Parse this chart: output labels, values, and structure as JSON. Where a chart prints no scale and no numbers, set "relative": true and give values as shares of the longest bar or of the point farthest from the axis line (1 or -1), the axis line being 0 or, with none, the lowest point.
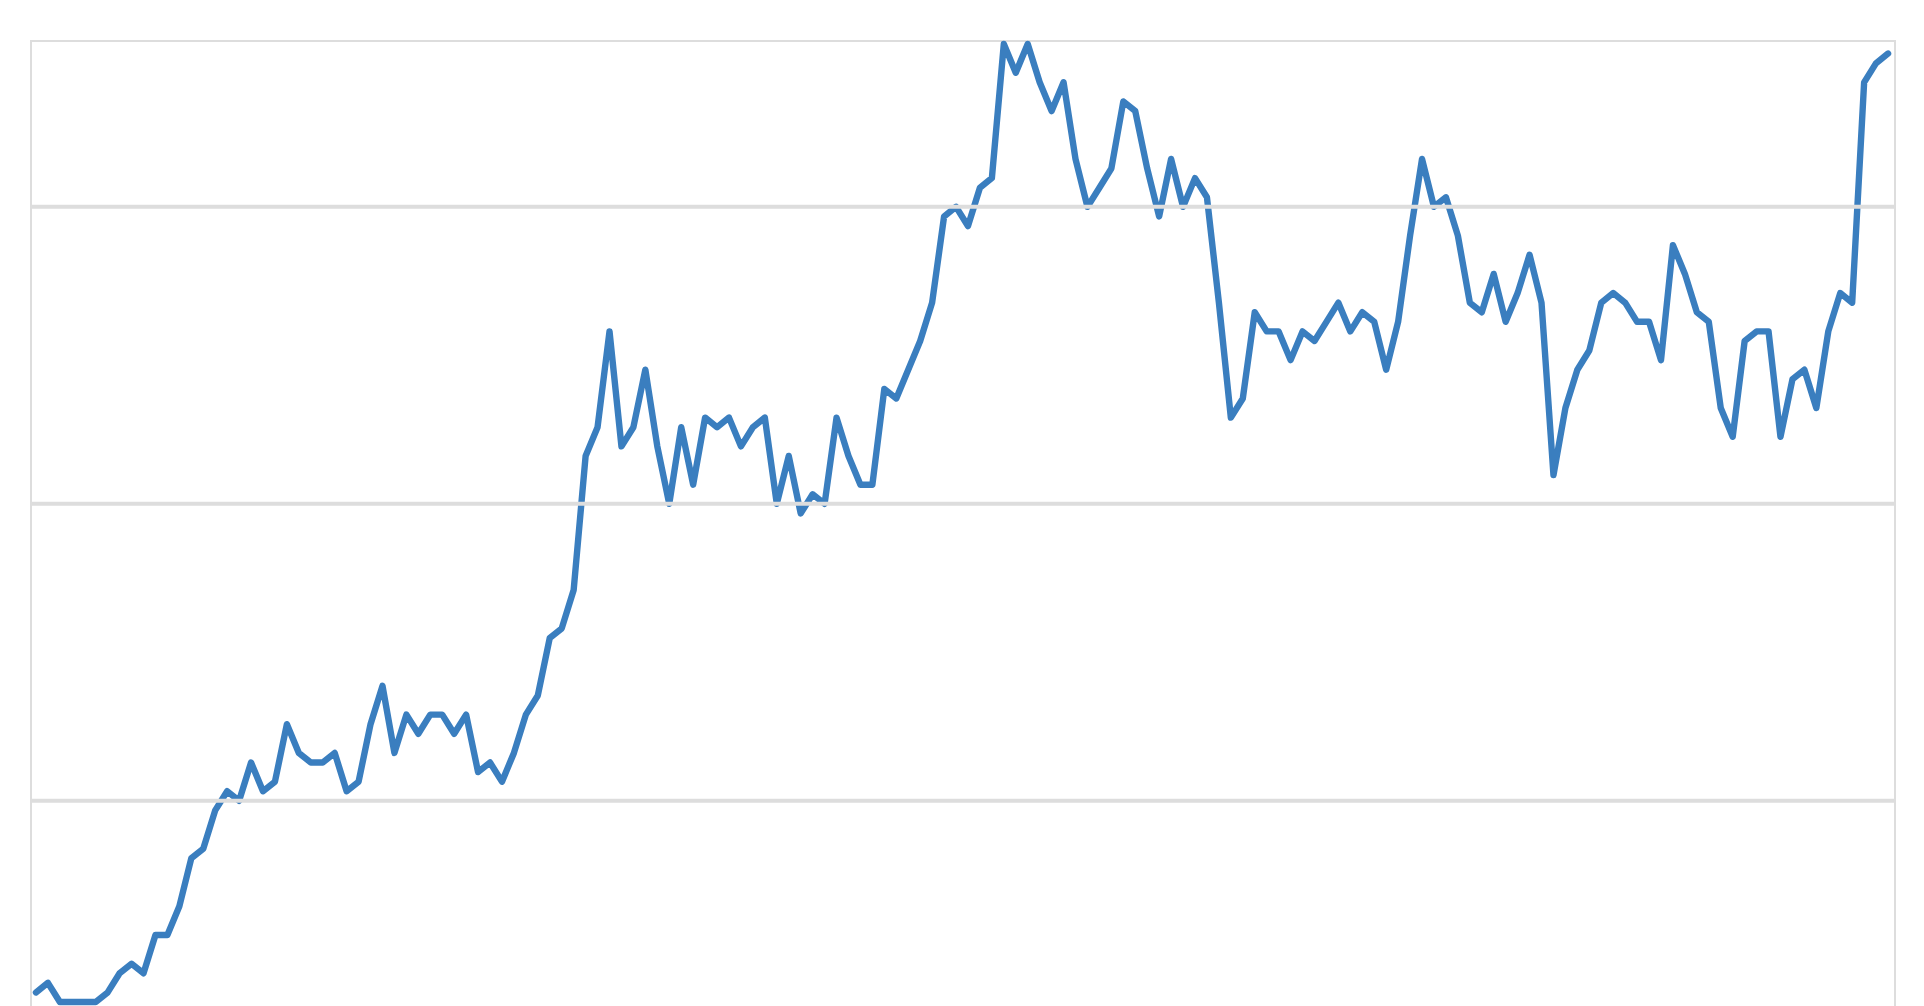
{
  "chart_data": {
    "type": "line",
    "relative": true,
    "ref_lines": [
      {
        "axis": "y",
        "value": 0.83,
        "color": "#dddddd"
      },
      {
        "axis": "y",
        "value": 0.52,
        "color": "#dddddd"
      },
      {
        "axis": "y",
        "value": 0.21,
        "color": "#dddddd"
      }
    ],
    "marker": "none",
    "line_style": "solid",
    "tick_labels": false,
    "categories": [
      null,
      null,
      null,
      null,
      null,
      null,
      null,
      null,
      null,
      null,
      null,
      null,
      null,
      null,
      null,
      null,
      null,
      null,
      null,
      null,
      null,
      null,
      null,
      null,
      null,
      null,
      null,
      null,
      null,
      null,
      null,
      null,
      null,
      null,
      null,
      null,
      null,
      null,
      null,
      null,
      null,
      null,
      null,
      null,
      null,
      null,
      null,
      null,
      null,
      null,
      null,
      null,
      null,
      null,
      null,
      null,
      null,
      null,
      null,
      null,
      null,
      null,
      null,
      null,
      null,
      null,
      null,
      null,
      null,
      null,
      null,
      null,
      null,
      null,
      null,
      null,
      null,
      null,
      null,
      null,
      null,
      null,
      null,
      null,
      null,
      null,
      null,
      null,
      null,
      null,
      null,
      null,
      null,
      null,
      null,
      null,
      null,
      null,
      null,
      null,
      null,
      null,
      null,
      null,
      null,
      null,
      null,
      null,
      null,
      null,
      null,
      null,
      null,
      null,
      null,
      null,
      null,
      null,
      null,
      null,
      null,
      null,
      null,
      null,
      null,
      null,
      null,
      null,
      null,
      null,
      null,
      null,
      null,
      null,
      null,
      null,
      null,
      null,
      null,
      null,
      null,
      null,
      null,
      null,
      null,
      null,
      null,
      null,
      null,
      null,
      null,
      null,
      null,
      null,
      null,
      null
    ],
    "series": [
      {
        "color": "#3a7ebf",
        "values": [
          0.01,
          0.02,
          0,
          0,
          0,
          0,
          0.01,
          0.03,
          0.04,
          0.03,
          0.07,
          0.07,
          0.1,
          0.15,
          0.16,
          0.2,
          0.22,
          0.21,
          0.25,
          0.22,
          0.23,
          0.29,
          0.26,
          0.25,
          0.25,
          0.26,
          0.22,
          0.23,
          0.29,
          0.33,
          0.26,
          0.3,
          0.28,
          0.3,
          0.3,
          0.28,
          0.3,
          0.24,
          0.25,
          0.23,
          0.26,
          0.3,
          0.32,
          0.38,
          0.39,
          0.43,
          0.57,
          0.6,
          0.7,
          0.58,
          0.6,
          0.66,
          0.58,
          0.52,
          0.6,
          0.54,
          0.61,
          0.6,
          0.61,
          0.58,
          0.6,
          0.61,
          0.52,
          0.57,
          0.51,
          0.53,
          0.52,
          0.61,
          0.57,
          0.54,
          0.54,
          0.64,
          0.63,
          0.66,
          0.69,
          0.73,
          0.82,
          0.83,
          0.81,
          0.85,
          0.86,
          1,
          0.97,
          1,
          0.96,
          0.93,
          0.96,
          0.88,
          0.83,
          0.85,
          0.87,
          0.94,
          0.93,
          0.87,
          0.82,
          0.88,
          0.83,
          0.86,
          0.84,
          0.73,
          0.61,
          0.63,
          0.72,
          0.7,
          0.7,
          0.67,
          0.7,
          0.69,
          0.71,
          0.73,
          0.7,
          0.72,
          0.71,
          0.66,
          0.71,
          0.8,
          0.88,
          0.83,
          0.84,
          0.8,
          0.73,
          0.72,
          0.76,
          0.71,
          0.74,
          0.78,
          0.73,
          0.55,
          0.62,
          0.66,
          0.68,
          0.73,
          0.74,
          0.73,
          0.71,
          0.71,
          0.67,
          0.79,
          0.76,
          0.72,
          0.71,
          0.62,
          0.59,
          0.69,
          0.7,
          0.7,
          0.59,
          0.65,
          0.66,
          0.62,
          0.7,
          0.74,
          0.73,
          0.96,
          0.98,
          0.99
        ]
      }
    ]
  }
}
